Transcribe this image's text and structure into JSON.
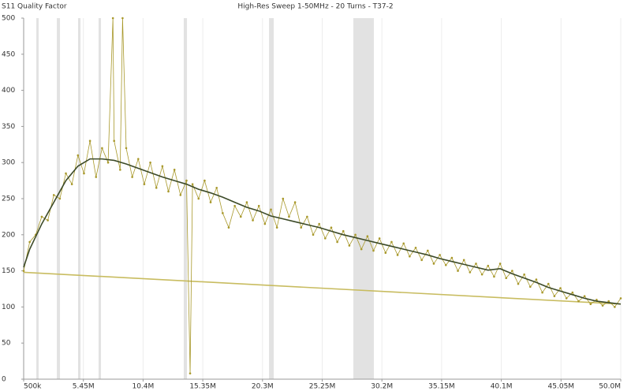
{
  "chart_data": {
    "type": "line",
    "title": "High-Res Sweep 1-50MHz - 20 Turns - T37-2",
    "y_label": "S11 Quality Factor",
    "xlim": [
      0.5,
      50
    ],
    "xticks": [
      {
        "value": 0.5,
        "label": "500k"
      },
      {
        "value": 5.45,
        "label": "5.45M"
      },
      {
        "value": 10.4,
        "label": "10.4M"
      },
      {
        "value": 15.35,
        "label": "15.35M"
      },
      {
        "value": 20.3,
        "label": "20.3M"
      },
      {
        "value": 25.25,
        "label": "25.25M"
      },
      {
        "value": 30.2,
        "label": "30.2M"
      },
      {
        "value": 35.15,
        "label": "35.15M"
      },
      {
        "value": 40.1,
        "label": "40.1M"
      },
      {
        "value": 45.05,
        "label": "45.05M"
      },
      {
        "value": 50,
        "label": "50.0M"
      }
    ],
    "ylim": [
      0,
      500
    ],
    "yticks": [
      0,
      50,
      100,
      150,
      200,
      250,
      300,
      350,
      400,
      450,
      500
    ],
    "grid": true,
    "bands": [
      [
        1.55,
        1.74
      ],
      [
        3.25,
        3.51
      ],
      [
        5.01,
        5.21
      ],
      [
        6.71,
        6.91
      ],
      [
        13.77,
        14.04
      ],
      [
        20.84,
        21.23
      ],
      [
        27.83,
        29.53
      ]
    ],
    "band_color": "#e2e2e2",
    "series": [
      {
        "color": "#c8bc60",
        "markers": false,
        "x": [
          0.5,
          50
        ],
        "values": [
          148,
          104
        ]
      },
      {
        "color": "#a8982a",
        "markers": true,
        "x": [
          0.5,
          1,
          1.5,
          2,
          2.5,
          3,
          3.5,
          4,
          4.5,
          5,
          5.5,
          6,
          6.5,
          7,
          7.5,
          7.9,
          8,
          8.5,
          8.7,
          9,
          9.5,
          10,
          10.5,
          11,
          11.5,
          12,
          12.5,
          13,
          13.5,
          14,
          14.3,
          14.5,
          15,
          15.5,
          16,
          16.5,
          17,
          17.5,
          18,
          18.5,
          19,
          19.5,
          20,
          20.5,
          21,
          21.5,
          22,
          22.5,
          23,
          23.5,
          24,
          24.5,
          25,
          25.5,
          26,
          26.5,
          27,
          27.5,
          28,
          28.5,
          29,
          29.5,
          30,
          30.5,
          31,
          31.5,
          32,
          32.5,
          33,
          33.5,
          34,
          34.5,
          35,
          35.5,
          36,
          36.5,
          37,
          37.5,
          38,
          38.5,
          39,
          39.5,
          40,
          40.5,
          41,
          41.5,
          42,
          42.5,
          43,
          43.5,
          44,
          44.5,
          45,
          45.5,
          46,
          46.5,
          47,
          47.5,
          48,
          48.5,
          49,
          49.5,
          50
        ],
        "values": [
          150,
          190,
          200,
          225,
          220,
          255,
          250,
          285,
          270,
          310,
          285,
          330,
          280,
          320,
          300,
          500,
          330,
          290,
          500,
          320,
          280,
          305,
          270,
          300,
          265,
          295,
          260,
          290,
          255,
          275,
          8,
          270,
          250,
          275,
          245,
          265,
          230,
          210,
          240,
          225,
          245,
          220,
          240,
          215,
          235,
          210,
          250,
          225,
          245,
          210,
          225,
          200,
          215,
          195,
          210,
          190,
          205,
          185,
          200,
          180,
          198,
          178,
          195,
          175,
          190,
          172,
          188,
          170,
          182,
          165,
          178,
          160,
          172,
          158,
          168,
          150,
          165,
          148,
          160,
          145,
          157,
          142,
          160,
          140,
          150,
          132,
          145,
          128,
          138,
          120,
          132,
          115,
          126,
          112,
          120,
          108,
          115,
          104,
          110,
          102,
          108,
          100,
          112
        ]
      },
      {
        "color": "#3c4a28",
        "markers": false,
        "x": [
          0.5,
          1,
          2,
          3,
          4,
          5,
          6,
          7,
          8,
          9,
          10,
          11,
          12,
          13,
          14,
          15,
          16,
          17,
          18,
          19,
          20,
          21,
          22,
          23,
          24,
          25,
          26,
          27,
          28,
          29,
          30,
          31,
          32,
          33,
          34,
          35,
          36,
          37,
          38,
          39,
          40,
          41,
          42,
          43,
          44,
          45,
          46,
          47,
          48,
          49,
          50
        ],
        "values": [
          155,
          180,
          215,
          245,
          275,
          295,
          305,
          305,
          303,
          298,
          292,
          286,
          280,
          275,
          270,
          263,
          258,
          252,
          245,
          238,
          233,
          226,
          222,
          218,
          214,
          210,
          205,
          200,
          196,
          192,
          188,
          184,
          180,
          176,
          172,
          167,
          163,
          159,
          155,
          151,
          153,
          146,
          140,
          134,
          127,
          122,
          117,
          112,
          108,
          106,
          104
        ]
      }
    ]
  }
}
